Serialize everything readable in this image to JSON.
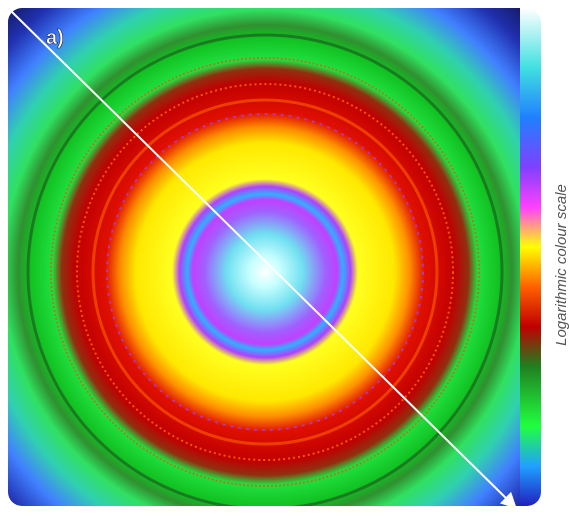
{
  "panel_label": "a)",
  "colour_scale_label": "Logarithmic colour scale"
}
